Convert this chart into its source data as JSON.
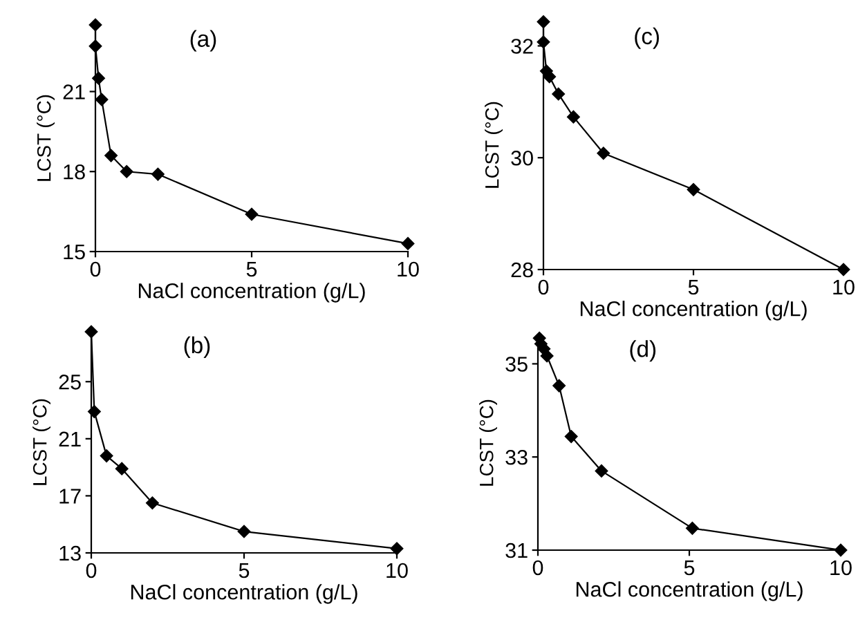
{
  "chart_data": [
    {
      "type": "line",
      "annotations": [
        "(a)"
      ],
      "xlabel": "NaCl concentration (g/L)",
      "ylabel": "LCST (°C)",
      "x": [
        0,
        0,
        0.1,
        0.2,
        0.5,
        1,
        2,
        5,
        10
      ],
      "values": [
        23.5,
        22.7,
        21.5,
        20.7,
        18.6,
        18.0,
        17.9,
        16.4,
        15.3
      ],
      "color": "#000000",
      "marker": "diamond",
      "xlim": [
        0,
        10
      ],
      "xticks": [
        0,
        5,
        10
      ],
      "ylim": [
        15,
        23.5
      ],
      "yticks": [
        15,
        18,
        21
      ],
      "grid": false,
      "legend": false
    },
    {
      "type": "line",
      "annotations": [
        "(c)"
      ],
      "xlabel": "NaCl concentration (g/L)",
      "ylabel": "LCST (°C)",
      "x": [
        0,
        0,
        0.1,
        0.2,
        0.5,
        1,
        2,
        5,
        10
      ],
      "values": [
        32.43,
        32.07,
        31.55,
        31.45,
        31.14,
        30.73,
        30.08,
        29.43,
        28.0
      ],
      "color": "#000000",
      "marker": "diamond",
      "xlim": [
        0,
        10
      ],
      "xticks": [
        0,
        5,
        10
      ],
      "ylim": [
        28,
        32.45
      ],
      "yticks": [
        28,
        30,
        32
      ],
      "grid": false,
      "legend": false
    },
    {
      "type": "line",
      "annotations": [
        "(b)"
      ],
      "xlabel": "NaCl concentration (g/L)",
      "ylabel": "LCST (°C)",
      "x": [
        0,
        0.1,
        0.5,
        1,
        2,
        5,
        10
      ],
      "values": [
        28.5,
        22.9,
        19.8,
        18.9,
        16.5,
        14.5,
        13.3
      ],
      "color": "#000000",
      "marker": "diamond",
      "xlim": [
        0,
        10
      ],
      "xticks": [
        0,
        5,
        10
      ],
      "ylim": [
        13,
        28.5
      ],
      "yticks": [
        13,
        17,
        21,
        25
      ],
      "grid": false,
      "legend": false
    },
    {
      "type": "line",
      "annotations": [
        "(d)"
      ],
      "xlabel": "NaCl concentration (g/L)",
      "ylabel": "LCST (°C)",
      "x": [
        0.05,
        0.1,
        0.2,
        0.3,
        0.7,
        1.1,
        2.1,
        5.1,
        10
      ],
      "values": [
        35.55,
        35.43,
        35.32,
        35.17,
        34.53,
        33.44,
        32.7,
        31.47,
        31.0
      ],
      "color": "#000000",
      "marker": "diamond",
      "xlim": [
        0,
        10
      ],
      "xticks": [
        0,
        5,
        10
      ],
      "ylim": [
        31,
        35.6
      ],
      "yticks": [
        31,
        33,
        35
      ],
      "grid": false,
      "legend": false
    }
  ]
}
